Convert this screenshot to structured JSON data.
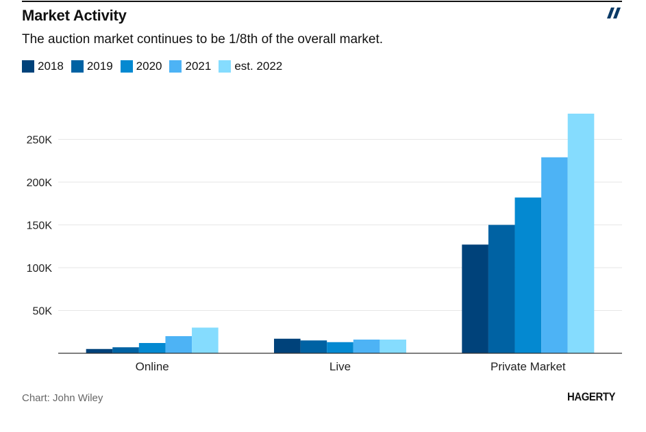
{
  "header": {
    "title": "Market Activity",
    "subtitle": "The auction market continues to be 1/8th of the overall market."
  },
  "footer": {
    "source": "Chart: John Wiley",
    "logo_text": "HAGERTY"
  },
  "brand_icon": "double-slash-icon",
  "chart_data": {
    "type": "bar",
    "title": "Market Activity",
    "subtitle": "The auction market continues to be 1/8th of the overall market.",
    "categories": [
      "Online",
      "Live",
      "Private Market"
    ],
    "series": [
      {
        "name": "2018",
        "color": "#00427a",
        "values": [
          5000,
          17000,
          127000
        ]
      },
      {
        "name": "2019",
        "color": "#0062a3",
        "values": [
          7000,
          15000,
          150000
        ]
      },
      {
        "name": "2020",
        "color": "#0489d1",
        "values": [
          12000,
          13000,
          182000
        ]
      },
      {
        "name": "2021",
        "color": "#4db3f5",
        "values": [
          20000,
          16000,
          229000
        ]
      },
      {
        "name": "est. 2022",
        "color": "#85dcfe",
        "values": [
          30000,
          16000,
          280000
        ]
      }
    ],
    "yticks": [
      50000,
      100000,
      150000,
      200000,
      250000
    ],
    "ytick_labels": [
      "50K",
      "100K",
      "150K",
      "200K",
      "250K"
    ],
    "ylim": [
      0,
      280000
    ],
    "xlabel": "",
    "ylabel": "",
    "grid": true,
    "legend_position": "top-left"
  }
}
